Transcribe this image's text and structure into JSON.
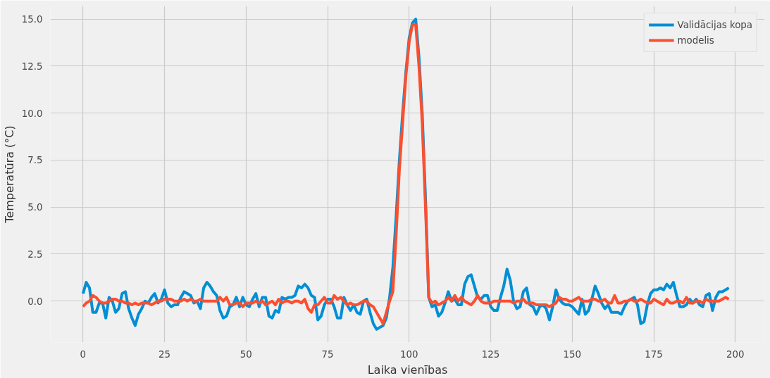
{
  "chart_data": {
    "type": "line",
    "xlabel": "Laika vienības",
    "ylabel": "Temperatūra (°C)",
    "x": [
      0,
      1,
      2,
      3,
      4,
      5,
      6,
      7,
      8,
      9,
      10,
      11,
      12,
      13,
      14,
      15,
      16,
      17,
      18,
      19,
      20,
      21,
      22,
      23,
      24,
      25,
      26,
      27,
      28,
      29,
      30,
      31,
      32,
      33,
      34,
      35,
      36,
      37,
      38,
      39,
      40,
      41,
      42,
      43,
      44,
      45,
      46,
      47,
      48,
      49,
      50,
      51,
      52,
      53,
      54,
      55,
      56,
      57,
      58,
      59,
      60,
      61,
      62,
      63,
      64,
      65,
      66,
      67,
      68,
      69,
      70,
      71,
      72,
      73,
      74,
      75,
      76,
      77,
      78,
      79,
      80,
      81,
      82,
      83,
      84,
      85,
      86,
      87,
      88,
      89,
      90,
      91,
      92,
      93,
      94,
      95,
      96,
      97,
      98,
      99,
      100,
      101,
      102,
      103,
      104,
      105,
      106,
      107,
      108,
      109,
      110,
      111,
      112,
      113,
      114,
      115,
      116,
      117,
      118,
      119,
      120,
      121,
      122,
      123,
      124,
      125,
      126,
      127,
      128,
      129,
      130,
      131,
      132,
      133,
      134,
      135,
      136,
      137,
      138,
      139,
      140,
      141,
      142,
      143,
      144,
      145,
      146,
      147,
      148,
      149,
      150,
      151,
      152,
      153,
      154,
      155,
      156,
      157,
      158,
      159,
      160,
      161,
      162,
      163,
      164,
      165,
      166,
      167,
      168,
      169,
      170,
      171,
      172,
      173,
      174,
      175,
      176,
      177,
      178,
      179,
      180,
      181,
      182,
      183,
      184,
      185,
      186,
      187,
      188,
      189,
      190,
      191,
      192,
      193,
      194,
      195,
      196,
      197,
      198
    ],
    "xlim": [
      -10,
      209
    ],
    "ylim": [
      -2.2,
      15.7
    ],
    "xticks": [
      0,
      25,
      50,
      75,
      100,
      125,
      150,
      175,
      200
    ],
    "yticks": [
      {
        "value": 0,
        "label": "0.0"
      },
      2.5,
      {
        "value": 5,
        "label": "5.0"
      },
      7.5,
      {
        "value": 10,
        "label": "10.0"
      },
      12.5,
      {
        "value": 15,
        "label": "15.0"
      }
    ],
    "grid": true,
    "legend": "top right",
    "line_style": "solid",
    "marker": "none",
    "series": [
      {
        "name": "Validācijas kopa",
        "color": "#008fd5",
        "values": [
          0.4,
          1.0,
          0.7,
          -0.6,
          -0.6,
          -0.1,
          -0.1,
          -0.9,
          0.2,
          0.0,
          -0.6,
          -0.4,
          0.4,
          0.5,
          -0.4,
          -0.9,
          -1.3,
          -0.7,
          -0.4,
          0.0,
          -0.1,
          0.2,
          0.4,
          -0.1,
          0.1,
          0.6,
          -0.1,
          -0.3,
          -0.2,
          -0.2,
          0.2,
          0.5,
          0.4,
          0.3,
          -0.1,
          0.0,
          -0.4,
          0.7,
          1.0,
          0.8,
          0.5,
          0.3,
          -0.5,
          -0.9,
          -0.8,
          -0.3,
          -0.2,
          0.2,
          -0.3,
          0.2,
          -0.2,
          -0.3,
          0.1,
          0.4,
          -0.3,
          0.2,
          0.2,
          -0.8,
          -0.9,
          -0.5,
          -0.6,
          0.2,
          0.1,
          0.2,
          0.2,
          0.3,
          0.8,
          0.7,
          0.9,
          0.7,
          0.3,
          0.2,
          -1.0,
          -0.8,
          -0.2,
          0.1,
          0.1,
          -0.3,
          -0.9,
          -0.9,
          0.2,
          -0.2,
          -0.5,
          -0.2,
          -0.6,
          -0.7,
          0.0,
          0.1,
          -0.6,
          -1.2,
          -1.5,
          -1.4,
          -1.3,
          -0.9,
          0.2,
          1.8,
          4.5,
          7.5,
          10.0,
          12.2,
          14.0,
          14.8,
          15.0,
          13.0,
          10.0,
          5.5,
          0.2,
          -0.3,
          -0.2,
          -0.8,
          -0.6,
          -0.1,
          0.5,
          0.0,
          0.1,
          -0.2,
          -0.2,
          0.9,
          1.3,
          1.4,
          0.8,
          0.2,
          0.1,
          0.3,
          0.3,
          -0.3,
          -0.5,
          -0.5,
          0.2,
          0.8,
          1.7,
          1.1,
          0.0,
          -0.4,
          -0.3,
          0.5,
          0.7,
          -0.2,
          -0.3,
          -0.7,
          -0.3,
          -0.2,
          -0.4,
          -1.0,
          -0.3,
          0.6,
          0.1,
          -0.1,
          -0.2,
          -0.2,
          -0.3,
          -0.5,
          -0.7,
          0.1,
          -0.7,
          -0.5,
          0.1,
          0.8,
          0.4,
          -0.1,
          -0.4,
          -0.2,
          -0.6,
          -0.6,
          -0.6,
          -0.7,
          -0.3,
          0.0,
          0.1,
          0.2,
          -0.2,
          -1.2,
          -1.1,
          -0.2,
          0.4,
          0.6,
          0.6,
          0.7,
          0.6,
          0.9,
          0.7,
          1.0,
          0.3,
          -0.3,
          -0.3,
          -0.2,
          0.1,
          -0.1,
          0.1,
          -0.2,
          -0.3,
          0.3,
          0.4,
          -0.5,
          0.2,
          0.5,
          0.5,
          0.6,
          0.7
        ]
      },
      {
        "name": "modelis",
        "color": "#fc4f30",
        "values": [
          -0.3,
          -0.1,
          0.0,
          0.3,
          0.2,
          0.0,
          -0.1,
          -0.1,
          0.0,
          0.1,
          0.1,
          0.0,
          0.0,
          -0.1,
          -0.1,
          -0.2,
          -0.1,
          -0.2,
          -0.1,
          -0.1,
          -0.1,
          -0.2,
          -0.1,
          0.0,
          0.0,
          0.1,
          0.1,
          0.1,
          0.0,
          0.0,
          0.0,
          0.1,
          0.0,
          0.1,
          0.0,
          0.0,
          0.1,
          0.0,
          0.0,
          0.0,
          0.0,
          0.0,
          0.2,
          0.0,
          0.2,
          -0.2,
          -0.2,
          -0.1,
          -0.1,
          -0.3,
          -0.1,
          -0.1,
          -0.1,
          0.0,
          -0.1,
          0.0,
          -0.2,
          -0.1,
          0.0,
          -0.2,
          0.1,
          -0.1,
          0.0,
          0.0,
          -0.1,
          0.0,
          0.0,
          -0.1,
          0.1,
          -0.4,
          -0.6,
          -0.2,
          -0.2,
          0.0,
          0.2,
          -0.1,
          -0.1,
          0.3,
          0.1,
          0.2,
          0.0,
          -0.2,
          -0.1,
          -0.2,
          -0.2,
          -0.1,
          0.0,
          0.0,
          -0.2,
          -0.3,
          -0.6,
          -0.9,
          -1.2,
          -0.6,
          0.0,
          0.5,
          3.5,
          7.0,
          9.5,
          12.0,
          13.8,
          14.7,
          14.7,
          12.5,
          9.5,
          5.0,
          0.2,
          -0.1,
          0.0,
          -0.2,
          -0.1,
          0.0,
          0.2,
          0.0,
          0.3,
          0.0,
          0.2,
          0.0,
          -0.1,
          -0.2,
          0.0,
          0.3,
          0.0,
          -0.1,
          -0.1,
          -0.1,
          0.0,
          0.0,
          0.0,
          0.0,
          0.0,
          0.0,
          -0.1,
          0.0,
          0.0,
          0.1,
          -0.1,
          -0.1,
          -0.1,
          -0.2,
          -0.2,
          -0.2,
          -0.2,
          -0.3,
          -0.2,
          -0.1,
          0.2,
          0.1,
          0.1,
          0.0,
          0.0,
          0.1,
          0.2,
          0.0,
          0.0,
          0.0,
          0.1,
          0.1,
          0.0,
          0.0,
          0.1,
          -0.1,
          -0.1,
          0.3,
          -0.1,
          -0.1,
          0.0,
          0.0,
          0.1,
          0.0,
          0.0,
          0.1,
          0.0,
          -0.1,
          -0.1,
          0.1,
          0.0,
          -0.1,
          -0.2,
          0.1,
          -0.1,
          -0.1,
          0.0,
          0.0,
          -0.1,
          0.2,
          -0.1,
          -0.1,
          0.0,
          0.0,
          -0.1,
          0.1,
          0.0,
          0.0,
          0.0,
          0.0,
          0.1,
          0.2,
          0.1
        ]
      }
    ]
  }
}
